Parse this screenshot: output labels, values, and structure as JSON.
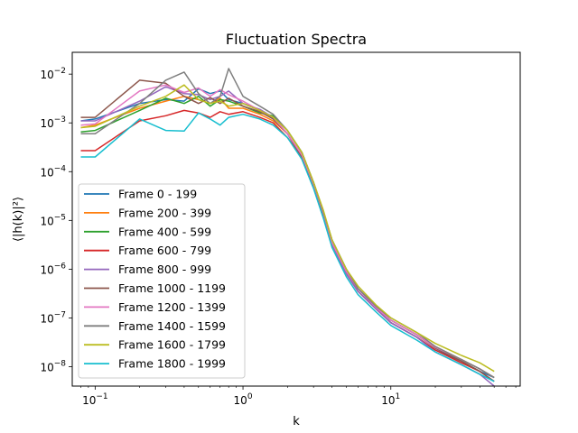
{
  "chart_data": {
    "type": "line",
    "title": "Fluctuation Spectra",
    "xlabel": "k",
    "ylabel": "⟨|h(k)|²⟩",
    "xscale": "log",
    "yscale": "log",
    "xlim": [
      0.07,
      75
    ],
    "ylim": [
      4e-09,
      0.028
    ],
    "xticks": [
      {
        "value": 0.1,
        "base": "10",
        "exp": "−1"
      },
      {
        "value": 1,
        "base": "10",
        "exp": "0"
      },
      {
        "value": 10,
        "base": "10",
        "exp": "1"
      }
    ],
    "yticks": [
      {
        "value": 1e-08,
        "base": "10",
        "exp": "−8"
      },
      {
        "value": 1e-07,
        "base": "10",
        "exp": "−7"
      },
      {
        "value": 1e-06,
        "base": "10",
        "exp": "−6"
      },
      {
        "value": 1e-05,
        "base": "10",
        "exp": "−5"
      },
      {
        "value": 0.0001,
        "base": "10",
        "exp": "−4"
      },
      {
        "value": 0.001,
        "base": "10",
        "exp": "−3"
      },
      {
        "value": 0.01,
        "base": "10",
        "exp": "−2"
      }
    ],
    "grid": false,
    "legend_position": "lower-left",
    "series": [
      {
        "name": "Frame 0 - 199",
        "color": "#1f77b4",
        "x": [
          0.08,
          0.1,
          0.2,
          0.3,
          0.4,
          0.5,
          0.6,
          0.7,
          0.8,
          1.0,
          1.3,
          1.6,
          2.0,
          2.5,
          3.0,
          3.5,
          4.0,
          5.0,
          6.0,
          8.0,
          10,
          15,
          20,
          30,
          40,
          50
        ],
        "y": [
          0.0011,
          0.0012,
          0.0025,
          0.003,
          0.0028,
          0.005,
          0.004,
          0.0045,
          0.003,
          0.0025,
          0.0018,
          0.0012,
          0.0006,
          0.0002,
          5e-05,
          1.2e-05,
          3e-06,
          8e-07,
          3.5e-07,
          1.5e-07,
          8e-08,
          4e-08,
          2.2e-08,
          1.3e-08,
          8e-09,
          6e-09
        ]
      },
      {
        "name": "Frame 200 - 399",
        "color": "#ff7f0e",
        "x": [
          0.08,
          0.1,
          0.2,
          0.3,
          0.4,
          0.5,
          0.6,
          0.7,
          0.8,
          1.0,
          1.3,
          1.6,
          2.0,
          2.5,
          3.0,
          3.5,
          4.0,
          5.0,
          6.0,
          8.0,
          10,
          15,
          20,
          30,
          40,
          50
        ],
        "y": [
          0.0008,
          0.0009,
          0.002,
          0.0028,
          0.0035,
          0.003,
          0.0025,
          0.0032,
          0.002,
          0.002,
          0.0015,
          0.0011,
          0.0006,
          0.00022,
          5e-05,
          1.3e-05,
          3.5e-06,
          9e-07,
          4e-07,
          1.6e-07,
          9e-08,
          4.5e-08,
          2.5e-08,
          1.4e-08,
          9e-09,
          6e-09
        ]
      },
      {
        "name": "Frame 400 - 599",
        "color": "#2ca02c",
        "x": [
          0.08,
          0.1,
          0.2,
          0.3,
          0.4,
          0.5,
          0.6,
          0.7,
          0.8,
          1.0,
          1.3,
          1.6,
          2.0,
          2.5,
          3.0,
          3.5,
          4.0,
          5.0,
          6.0,
          8.0,
          10,
          15,
          20,
          30,
          40,
          50
        ],
        "y": [
          0.00065,
          0.0007,
          0.0018,
          0.0032,
          0.0025,
          0.0035,
          0.0022,
          0.003,
          0.0028,
          0.0022,
          0.0016,
          0.0014,
          0.0007,
          0.00025,
          6e-05,
          1.5e-05,
          4e-06,
          1e-06,
          4e-07,
          1.7e-07,
          9e-08,
          4.5e-08,
          2.5e-08,
          1.4e-08,
          9e-09,
          6e-09
        ]
      },
      {
        "name": "Frame 600 - 799",
        "color": "#d62728",
        "x": [
          0.08,
          0.1,
          0.2,
          0.3,
          0.4,
          0.5,
          0.6,
          0.7,
          0.8,
          1.0,
          1.3,
          1.6,
          2.0,
          2.5,
          3.0,
          3.5,
          4.0,
          5.0,
          6.0,
          8.0,
          10,
          15,
          20,
          30,
          40,
          50
        ],
        "y": [
          0.00027,
          0.00027,
          0.0011,
          0.0014,
          0.0018,
          0.0016,
          0.0013,
          0.0017,
          0.0015,
          0.0017,
          0.0013,
          0.001,
          0.0005,
          0.0002,
          5e-05,
          1.2e-05,
          3e-06,
          8e-07,
          3.5e-07,
          1.5e-07,
          8e-08,
          4e-08,
          2.2e-08,
          1.2e-08,
          8e-09,
          5e-09
        ]
      },
      {
        "name": "Frame 800 - 999",
        "color": "#9467bd",
        "x": [
          0.08,
          0.1,
          0.2,
          0.3,
          0.4,
          0.5,
          0.6,
          0.7,
          0.8,
          1.0,
          1.3,
          1.6,
          2.0,
          2.5,
          3.0,
          3.5,
          4.0,
          5.0,
          6.0,
          8.0,
          10,
          15,
          20,
          30,
          40,
          50
        ],
        "y": [
          0.0011,
          0.0011,
          0.0028,
          0.0055,
          0.004,
          0.0038,
          0.003,
          0.0035,
          0.0045,
          0.0025,
          0.0019,
          0.0013,
          0.0006,
          0.0002,
          5e-05,
          1.2e-05,
          3e-06,
          8e-07,
          3.5e-07,
          1.5e-07,
          8e-08,
          4e-08,
          2e-08,
          1.1e-08,
          7e-09,
          4e-09
        ]
      },
      {
        "name": "Frame 1000 - 1199",
        "color": "#8c564b",
        "x": [
          0.08,
          0.1,
          0.2,
          0.3,
          0.4,
          0.5,
          0.6,
          0.7,
          0.8,
          1.0,
          1.3,
          1.6,
          2.0,
          2.5,
          3.0,
          3.5,
          4.0,
          5.0,
          6.0,
          8.0,
          10,
          15,
          20,
          30,
          40,
          50
        ],
        "y": [
          0.0013,
          0.0013,
          0.0075,
          0.0065,
          0.0035,
          0.0025,
          0.0033,
          0.0025,
          0.0032,
          0.0022,
          0.0017,
          0.0012,
          0.0006,
          0.0002,
          5e-05,
          1.3e-05,
          3.5e-06,
          9e-07,
          4e-07,
          1.6e-07,
          9e-08,
          4.5e-08,
          2.4e-08,
          1.3e-08,
          8e-09,
          5e-09
        ]
      },
      {
        "name": "Frame 1200 - 1399",
        "color": "#e377c2",
        "x": [
          0.08,
          0.1,
          0.2,
          0.3,
          0.4,
          0.5,
          0.6,
          0.7,
          0.8,
          1.0,
          1.3,
          1.6,
          2.0,
          2.5,
          3.0,
          3.5,
          4.0,
          5.0,
          6.0,
          8.0,
          10,
          15,
          20,
          30,
          40,
          50
        ],
        "y": [
          0.0009,
          0.00095,
          0.0045,
          0.006,
          0.0042,
          0.0052,
          0.0035,
          0.0048,
          0.0038,
          0.0028,
          0.0018,
          0.0013,
          0.0006,
          0.00022,
          5.5e-05,
          1.4e-05,
          3.5e-06,
          9e-07,
          4e-07,
          1.6e-07,
          9e-08,
          4.5e-08,
          2.5e-08,
          1.4e-08,
          9e-09,
          6e-09
        ]
      },
      {
        "name": "Frame 1400 - 1599",
        "color": "#7f7f7f",
        "x": [
          0.08,
          0.1,
          0.2,
          0.3,
          0.4,
          0.5,
          0.6,
          0.7,
          0.8,
          1.0,
          1.3,
          1.6,
          2.0,
          2.5,
          3.0,
          3.5,
          4.0,
          5.0,
          6.0,
          8.0,
          10,
          15,
          20,
          30,
          40,
          50
        ],
        "y": [
          0.0006,
          0.0006,
          0.0025,
          0.0075,
          0.011,
          0.004,
          0.0025,
          0.0035,
          0.013,
          0.0035,
          0.0022,
          0.0015,
          0.0007,
          0.00025,
          6e-05,
          1.5e-05,
          4e-06,
          1e-06,
          4e-07,
          1.7e-07,
          1e-07,
          5e-08,
          2.6e-08,
          1.4e-08,
          9e-09,
          6e-09
        ]
      },
      {
        "name": "Frame 1600 - 1799",
        "color": "#bcbd22",
        "x": [
          0.08,
          0.1,
          0.2,
          0.3,
          0.4,
          0.5,
          0.6,
          0.7,
          0.8,
          1.0,
          1.3,
          1.6,
          2.0,
          2.5,
          3.0,
          3.5,
          4.0,
          5.0,
          6.0,
          8.0,
          10,
          15,
          20,
          30,
          40,
          50
        ],
        "y": [
          0.0008,
          0.00085,
          0.0022,
          0.0035,
          0.006,
          0.003,
          0.0025,
          0.0028,
          0.0022,
          0.0025,
          0.0018,
          0.0013,
          0.0007,
          0.00025,
          6e-05,
          1.6e-05,
          4e-06,
          1e-06,
          4.5e-07,
          1.8e-07,
          1e-07,
          5e-08,
          3e-08,
          1.7e-08,
          1.2e-08,
          8e-09
        ]
      },
      {
        "name": "Frame 1800 - 1999",
        "color": "#17becf",
        "x": [
          0.08,
          0.1,
          0.2,
          0.3,
          0.4,
          0.5,
          0.6,
          0.7,
          0.8,
          1.0,
          1.3,
          1.6,
          2.0,
          2.5,
          3.0,
          3.5,
          4.0,
          5.0,
          6.0,
          8.0,
          10,
          15,
          20,
          30,
          40,
          50
        ],
        "y": [
          0.0002,
          0.0002,
          0.0012,
          0.0007,
          0.00068,
          0.0016,
          0.0012,
          0.0009,
          0.0013,
          0.0015,
          0.0012,
          0.0009,
          0.0005,
          0.00018,
          4.5e-05,
          1.1e-05,
          2.8e-06,
          7e-07,
          3e-07,
          1.3e-07,
          7e-08,
          3.5e-08,
          2e-08,
          1.1e-08,
          7e-09,
          5e-09
        ]
      }
    ]
  }
}
